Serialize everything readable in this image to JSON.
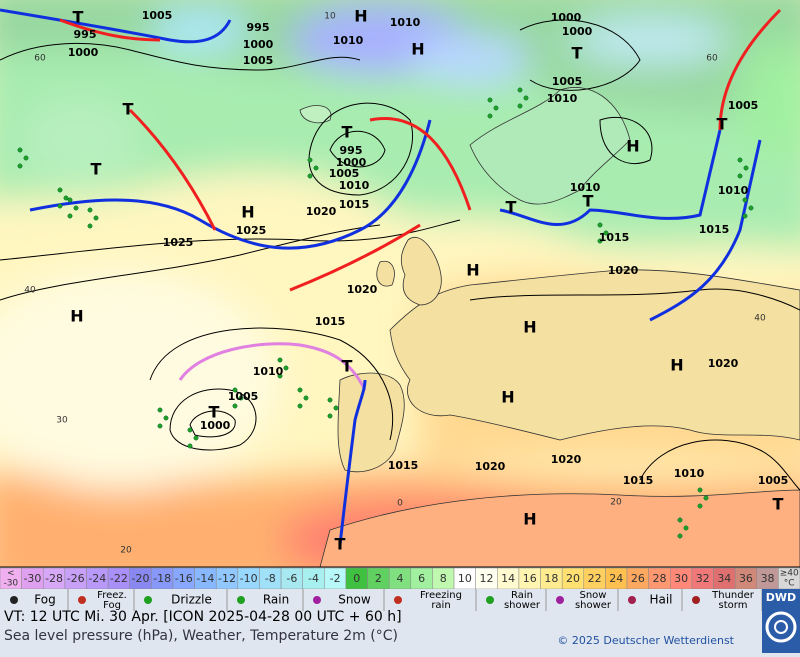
{
  "map": {
    "pressure_labels": [
      "T",
      "995",
      "1005",
      "1000",
      "995",
      "1000",
      "1005",
      "H",
      "1010",
      "1010",
      "H",
      "1000",
      "1000",
      "T",
      "1005",
      "1010",
      "T",
      "T",
      "995",
      "1000",
      "1005",
      "1010",
      "1015",
      "1020",
      "H",
      "1025",
      "1025",
      "T",
      "H",
      "1005",
      "T",
      "1010",
      "1015",
      "1010",
      "T",
      "1015",
      "T",
      "H",
      "1020",
      "1020",
      "H",
      "1015",
      "H",
      "H",
      "1020",
      "T",
      "1010",
      "1005",
      "T",
      "1000",
      "H",
      "1015",
      "1020",
      "1020",
      "1015",
      "1010",
      "1005",
      "T",
      "H",
      "T"
    ],
    "grid_labels": [
      "60",
      "40",
      "30",
      "20",
      "0",
      "10",
      "60",
      "40",
      "20"
    ]
  },
  "temperature_scale": {
    "items": [
      {
        "label": [
          "<",
          "-30"
        ],
        "color": "#f0b0f0"
      },
      {
        "label": [
          "-30"
        ],
        "color": "#e0a0f0"
      },
      {
        "label": [
          "-28"
        ],
        "color": "#d8a8f8"
      },
      {
        "label": [
          "-26"
        ],
        "color": "#c8a0f8"
      },
      {
        "label": [
          "-24"
        ],
        "color": "#b898f8"
      },
      {
        "label": [
          "-22"
        ],
        "color": "#a890f8"
      },
      {
        "label": [
          "-20"
        ],
        "color": "#8888f0"
      },
      {
        "label": [
          "-18"
        ],
        "color": "#8898f8"
      },
      {
        "label": [
          "-16"
        ],
        "color": "#88a8ff"
      },
      {
        "label": [
          "-14"
        ],
        "color": "#88b8ff"
      },
      {
        "label": [
          "-12"
        ],
        "color": "#90c8ff"
      },
      {
        "label": [
          "-10"
        ],
        "color": "#98d8ff"
      },
      {
        "label": [
          "-8"
        ],
        "color": "#a0e0f8"
      },
      {
        "label": [
          "-6"
        ],
        "color": "#a8e8f0"
      },
      {
        "label": [
          "-4"
        ],
        "color": "#a8f0f0"
      },
      {
        "label": [
          "-2"
        ],
        "color": "#b8f8f8"
      },
      {
        "label": [
          "0"
        ],
        "color": "#40c040"
      },
      {
        "label": [
          "2"
        ],
        "color": "#60d060"
      },
      {
        "label": [
          "4"
        ],
        "color": "#80e080"
      },
      {
        "label": [
          "6"
        ],
        "color": "#a0f0a0"
      },
      {
        "label": [
          "8"
        ],
        "color": "#c0f8b0"
      },
      {
        "label": [
          "10"
        ],
        "color": "#ffffff"
      },
      {
        "label": [
          "12"
        ],
        "color": "#fffff0"
      },
      {
        "label": [
          "14"
        ],
        "color": "#fffad0"
      },
      {
        "label": [
          "16"
        ],
        "color": "#fff5b0"
      },
      {
        "label": [
          "18"
        ],
        "color": "#ffec90"
      },
      {
        "label": [
          "20"
        ],
        "color": "#ffe070"
      },
      {
        "label": [
          "22"
        ],
        "color": "#ffd060"
      },
      {
        "label": [
          "24"
        ],
        "color": "#ffc050"
      },
      {
        "label": [
          "26"
        ],
        "color": "#ffa860"
      },
      {
        "label": [
          "28"
        ],
        "color": "#ff9870"
      },
      {
        "label": [
          "30"
        ],
        "color": "#ff8878"
      },
      {
        "label": [
          "32"
        ],
        "color": "#f07878"
      },
      {
        "label": [
          "34"
        ],
        "color": "#e07070"
      },
      {
        "label": [
          "36"
        ],
        "color": "#d08878"
      },
      {
        "label": [
          "38"
        ],
        "color": "#c09898"
      },
      {
        "label": [
          "≥40",
          "°C"
        ],
        "color": "#d8d8d8"
      }
    ]
  },
  "weather_legend": {
    "items": [
      {
        "label": [
          "Fog"
        ]
      },
      {
        "label": [
          "Freez.",
          "Fog"
        ]
      },
      {
        "label": [
          "Drizzle"
        ]
      },
      {
        "label": [
          "Rain"
        ]
      },
      {
        "label": [
          "Snow"
        ]
      },
      {
        "label": [
          "Freezing",
          "rain"
        ]
      },
      {
        "label": [
          "Rain",
          "shower"
        ]
      },
      {
        "label": [
          "Snow",
          "shower"
        ]
      },
      {
        "label": [
          "Hail"
        ]
      },
      {
        "label": [
          "Thunder",
          "storm"
        ]
      }
    ]
  },
  "footer": {
    "valid_time": "VT: 12 UTC Mi.  30 Apr. [ICON 2025-04-28  00 UTC + 60 h]",
    "description": "Sea level pressure (hPa), Weather, Temperature 2m (°C)",
    "copyright": "© 2025 Deutscher Wetterdienst",
    "logo": "DWD"
  }
}
